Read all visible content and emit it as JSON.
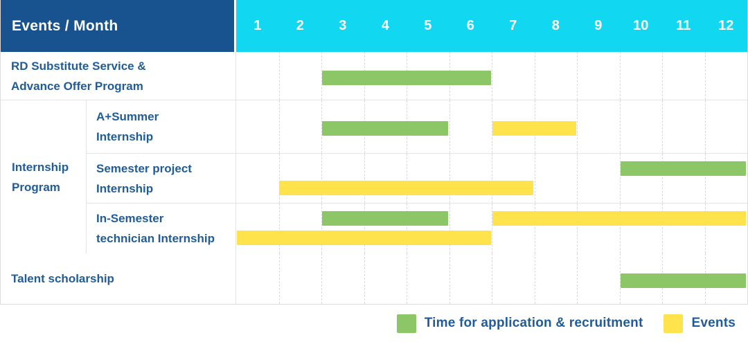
{
  "header": {
    "title": "Events / Month",
    "months": [
      "1",
      "2",
      "3",
      "4",
      "5",
      "6",
      "7",
      "8",
      "9",
      "10",
      "11",
      "12"
    ]
  },
  "colors": {
    "header_bg": "#19538F",
    "months_bg": "#12D7F0",
    "green": "#8CC666",
    "yellow": "#FFE34D",
    "label_text": "#1F5C99"
  },
  "chart_data": {
    "type": "gantt",
    "x_unit": "month",
    "x_range": [
      1,
      12
    ],
    "grid": "dashed-vertical",
    "group_label_lines": [
      "Internship",
      "Program"
    ],
    "rows": [
      {
        "id": "rd-substitute",
        "label_lines": [
          "RD Substitute Service &",
          "Advance Offer Program"
        ],
        "group": null,
        "lanes": 1,
        "bars": [
          {
            "color": "green",
            "start_month": 3,
            "end_month": 6,
            "lane": 0
          }
        ]
      },
      {
        "id": "a-plus-summer",
        "label_lines": [
          "A+Summer",
          "Internship"
        ],
        "group": "Internship Program",
        "lanes": 1,
        "bars": [
          {
            "color": "green",
            "start_month": 3,
            "end_month": 5,
            "lane": 0
          },
          {
            "color": "yellow",
            "start_month": 7,
            "end_month": 8,
            "lane": 0
          }
        ]
      },
      {
        "id": "semester-project",
        "label_lines": [
          "Semester project",
          "Internship"
        ],
        "group": "Internship Program",
        "lanes": 2,
        "bars": [
          {
            "color": "green",
            "start_month": 10,
            "end_month": 12,
            "lane": 0
          },
          {
            "color": "yellow",
            "start_month": 2,
            "end_month": 7,
            "lane": 1
          }
        ]
      },
      {
        "id": "in-semester-technician",
        "label_lines": [
          "In-Semester",
          "technician Internship"
        ],
        "group": "Internship Program",
        "lanes": 2,
        "bars": [
          {
            "color": "green",
            "start_month": 3,
            "end_month": 5,
            "lane": 0
          },
          {
            "color": "yellow",
            "start_month": 7,
            "end_month": 12,
            "lane": 0
          },
          {
            "color": "yellow",
            "start_month": 1,
            "end_month": 6,
            "lane": 1
          }
        ]
      },
      {
        "id": "talent-scholarship",
        "label_lines": [
          "Talent scholarship"
        ],
        "group": null,
        "lanes": 1,
        "bars": [
          {
            "color": "green",
            "start_month": 10,
            "end_month": 12,
            "lane": 0
          }
        ]
      }
    ],
    "legend": [
      {
        "color": "green",
        "label": "Time for application & recruitment"
      },
      {
        "color": "yellow",
        "label": "Events"
      }
    ]
  }
}
